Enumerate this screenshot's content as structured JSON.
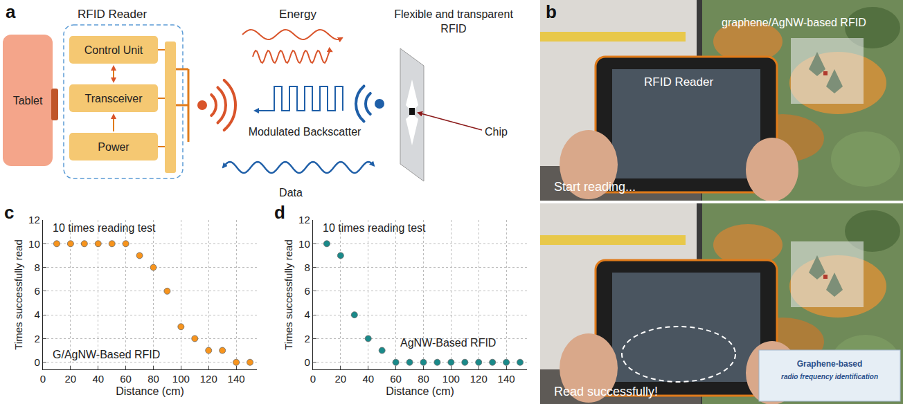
{
  "panel_a": {
    "letter": "a",
    "reader": "RFID Reader",
    "tablet": "Tablet",
    "blocks": [
      "Control Unit",
      "Transceiver",
      "Power"
    ],
    "energy": "Energy",
    "backscatter": "Modulated Backscatter",
    "data": "Data",
    "tag": [
      "Flexible and transparent",
      "RFID"
    ],
    "chip": "Chip"
  },
  "panel_b": {
    "letter": "b",
    "top": {
      "tag": "graphene/AgNW-based RFID",
      "reader": "RFID Reader",
      "status": "Start reading..."
    },
    "bottom": {
      "status": "Read successfully!",
      "card": [
        "Graphene-based",
        "radio frequency identification"
      ]
    }
  },
  "chart_data": [
    {
      "panel": "c",
      "type": "scatter",
      "annotation": "10 times reading test",
      "x": [
        10,
        20,
        30,
        40,
        50,
        60,
        70,
        80,
        90,
        100,
        110,
        120,
        130,
        140,
        150
      ],
      "series": [
        {
          "name": "G/AgNW-Based RFID",
          "color": "#f7941d",
          "values": [
            10,
            10,
            10,
            10,
            10,
            10,
            9,
            8,
            6,
            3,
            2,
            1,
            1,
            0,
            0
          ]
        }
      ],
      "xlabel": "Distance (cm)",
      "ylabel": "Times successfully read",
      "xlim": [
        0,
        155
      ],
      "ylim": [
        -0.6,
        12
      ],
      "xticks": [
        0,
        20,
        40,
        60,
        80,
        100,
        120,
        140
      ],
      "yticks": [
        0,
        2,
        4,
        6,
        8,
        10,
        12
      ],
      "grid": true,
      "marker": "circle"
    },
    {
      "panel": "d",
      "type": "scatter",
      "annotation": "10 times reading test",
      "x": [
        10,
        20,
        30,
        40,
        50,
        60,
        70,
        80,
        90,
        100,
        110,
        120,
        130,
        140,
        150
      ],
      "series": [
        {
          "name": "AgNW-Based RFID",
          "color": "#1a8a8a",
          "values": [
            10,
            9,
            4,
            2,
            1,
            0,
            0,
            0,
            0,
            0,
            0,
            0,
            0,
            0,
            0
          ]
        }
      ],
      "xlabel": "Distance (cm)",
      "ylabel": "Times successfully read",
      "xlim": [
        0,
        155
      ],
      "ylim": [
        -0.6,
        12
      ],
      "xticks": [
        0,
        20,
        40,
        60,
        80,
        100,
        120,
        140
      ],
      "yticks": [
        0,
        2,
        4,
        6,
        8,
        10,
        12
      ],
      "grid": true,
      "marker": "circle"
    }
  ]
}
